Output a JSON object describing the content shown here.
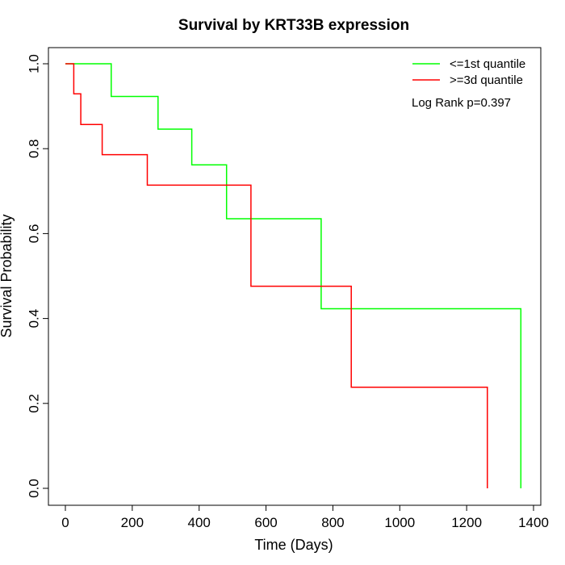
{
  "chart_data": {
    "type": "line",
    "title": "Survival by KRT33B expression",
    "xlabel": "Time (Days)",
    "ylabel": "Survival Probability",
    "xlim": [
      0,
      1400
    ],
    "ylim": [
      0,
      1.0
    ],
    "x_ticks": [
      0,
      200,
      400,
      600,
      800,
      1000,
      1200,
      1400
    ],
    "y_ticks": [
      0.0,
      0.2,
      0.4,
      0.6,
      0.8,
      1.0
    ],
    "x_tick_labels": [
      "0",
      "200",
      "400",
      "600",
      "800",
      "1000",
      "1200",
      "1400"
    ],
    "y_tick_labels": [
      "0.0",
      "0.2",
      "0.4",
      "0.6",
      "0.8",
      "1.0"
    ],
    "grid": false,
    "legend_position": "top-right",
    "annotation": "Log Rank p=0.397",
    "series": [
      {
        "name": "<=1st quantile",
        "color": "#00ff00",
        "step": true,
        "x": [
          0,
          137,
          137,
          277,
          277,
          378,
          378,
          482,
          482,
          765,
          765,
          1362,
          1362
        ],
        "y": [
          1.0,
          1.0,
          0.923,
          0.923,
          0.846,
          0.846,
          0.762,
          0.762,
          0.635,
          0.635,
          0.423,
          0.423,
          0.0
        ]
      },
      {
        "name": ">=3d quantile",
        "color": "#ff0000",
        "step": true,
        "x": [
          0,
          25,
          25,
          46,
          46,
          110,
          110,
          245,
          245,
          555,
          555,
          855,
          855,
          1262,
          1262
        ],
        "y": [
          1.0,
          1.0,
          0.929,
          0.929,
          0.857,
          0.857,
          0.786,
          0.786,
          0.714,
          0.714,
          0.476,
          0.476,
          0.238,
          0.238,
          0.0
        ]
      }
    ]
  }
}
